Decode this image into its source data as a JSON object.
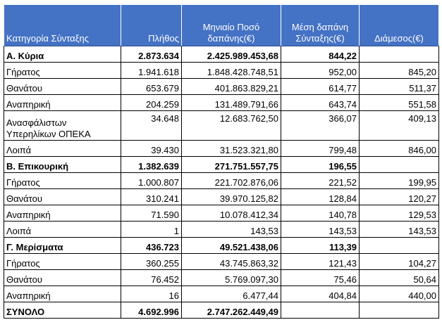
{
  "table": {
    "headers": [
      "Κατηγορία Σύνταξης",
      "Πλήθος",
      "Μηνιαίο Ποσό δαπάνης(€)",
      "Μέση δαπάνη Σύνταξης(€)",
      "Διάμεσος(€)"
    ],
    "rows": [
      {
        "category": "Α. Κύρια",
        "count": "2.873.634",
        "amount": "2.425.989.453,68",
        "avg": "844,22",
        "median": ""
      },
      {
        "category": "Γήρατος",
        "count": "1.941.618",
        "amount": "1.848.428.748,51",
        "avg": "952,00",
        "median": "845,20"
      },
      {
        "category": "Θανάτου",
        "count": "653.679",
        "amount": "401.863.829,21",
        "avg": "614,77",
        "median": "511,37"
      },
      {
        "category": "Αναπηρική",
        "count": "204.259",
        "amount": "131.489.791,66",
        "avg": "643,74",
        "median": "551,58"
      },
      {
        "category": "Ανασφάλιστων Υπερηλίκων ΟΠΕΚΑ",
        "count": "34.648",
        "amount": "12.683.762,50",
        "avg": "366,07",
        "median": "409,13"
      },
      {
        "category": "Λοιπά",
        "count": "39.430",
        "amount": "31.523.321,80",
        "avg": "799,48",
        "median": "846,00"
      },
      {
        "category": "Β. Επικουρική",
        "count": "1.382.639",
        "amount": "271.751.557,75",
        "avg": "196,55",
        "median": ""
      },
      {
        "category": "Γήρατος",
        "count": "1.000.807",
        "amount": "221.702.876,06",
        "avg": "221,52",
        "median": "199,95"
      },
      {
        "category": "Θανάτου",
        "count": "310.241",
        "amount": "39.970.125,82",
        "avg": "128,84",
        "median": "120,27"
      },
      {
        "category": "Αναπηρική",
        "count": "71.590",
        "amount": "10.078.412,34",
        "avg": "140,78",
        "median": "129,53"
      },
      {
        "category": "Λοιπά",
        "count": "1",
        "amount": "143,53",
        "avg": "143,53",
        "median": "143,53"
      },
      {
        "category": "Γ. Μερίσματα",
        "count": "436.723",
        "amount": "49.521.438,06",
        "avg": "113,39",
        "median": ""
      },
      {
        "category": "Γήρατος",
        "count": "360.255",
        "amount": "43.745.863,32",
        "avg": "121,43",
        "median": "104,27"
      },
      {
        "category": "Θανάτου",
        "count": "76.452",
        "amount": "5.769.097,30",
        "avg": "75,46",
        "median": "50,64"
      },
      {
        "category": "Αναπηρική",
        "count": "16",
        "amount": "6.477,44",
        "avg": "404,84",
        "median": "440,00"
      },
      {
        "category": "ΣΥΝΟΛΟ",
        "count": "4.692.996",
        "amount": "2.747.262.449,49",
        "avg": "",
        "median": ""
      }
    ]
  }
}
